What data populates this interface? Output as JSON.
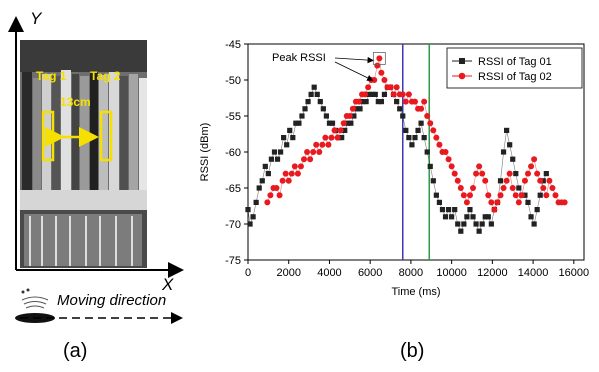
{
  "panel_a": {
    "y_axis_label": "Y",
    "x_axis_label": "X",
    "tag1_label": "Tag 1",
    "tag2_label": "Tag 2",
    "distance_label": "13cm",
    "moving_direction_label": "Moving direction",
    "caption": "(a)",
    "highlight_color": "#f5e000"
  },
  "panel_b": {
    "caption": "(b)",
    "annotation": "Peak RSSI",
    "vline1_x": 7600,
    "vline1_color": "#3b3bb3",
    "vline2_x": 8900,
    "vline2_color": "#2e9a4a"
  },
  "chart_data": {
    "type": "scatter",
    "title": "",
    "xlabel": "Time (ms)",
    "ylabel": "RSSI (dBm)",
    "xlim": [
      0,
      16500
    ],
    "ylim": [
      -75,
      -45
    ],
    "xticks": [
      0,
      2000,
      4000,
      6000,
      8000,
      10000,
      12000,
      14000,
      16000
    ],
    "yticks": [
      -75,
      -70,
      -65,
      -60,
      -55,
      -50,
      -45
    ],
    "legend_position": "top-right",
    "series": [
      {
        "name": "RSSI of Tag 01",
        "color": "#222222",
        "marker": "square",
        "points": [
          [
            0,
            -68
          ],
          [
            100,
            -70
          ],
          [
            250,
            -69
          ],
          [
            400,
            -67
          ],
          [
            550,
            -65
          ],
          [
            700,
            -64
          ],
          [
            850,
            -62
          ],
          [
            1000,
            -63
          ],
          [
            1150,
            -61
          ],
          [
            1300,
            -60
          ],
          [
            1450,
            -61
          ],
          [
            1600,
            -60
          ],
          [
            1750,
            -58
          ],
          [
            1900,
            -59
          ],
          [
            2050,
            -57
          ],
          [
            2200,
            -58
          ],
          [
            2350,
            -56
          ],
          [
            2500,
            -56
          ],
          [
            2650,
            -55
          ],
          [
            2800,
            -54
          ],
          [
            2950,
            -53
          ],
          [
            3100,
            -52
          ],
          [
            3250,
            -51
          ],
          [
            3400,
            -52
          ],
          [
            3550,
            -53
          ],
          [
            3700,
            -54
          ],
          [
            3850,
            -55
          ],
          [
            4000,
            -56
          ],
          [
            4150,
            -56
          ],
          [
            4300,
            -57
          ],
          [
            4450,
            -58
          ],
          [
            4600,
            -58
          ],
          [
            4750,
            -57
          ],
          [
            4900,
            -56
          ],
          [
            5050,
            -56
          ],
          [
            5200,
            -55
          ],
          [
            5350,
            -54
          ],
          [
            5500,
            -54
          ],
          [
            5650,
            -53
          ],
          [
            5800,
            -53
          ],
          [
            5950,
            -52
          ],
          [
            6100,
            -52
          ],
          [
            6250,
            -52
          ],
          [
            6400,
            -53
          ],
          [
            6550,
            -53
          ],
          [
            6700,
            -52
          ],
          [
            6850,
            -51
          ],
          [
            7000,
            -51
          ],
          [
            7150,
            -52
          ],
          [
            7300,
            -53
          ],
          [
            7450,
            -54
          ],
          [
            7600,
            -55
          ],
          [
            7750,
            -57
          ],
          [
            7900,
            -58
          ],
          [
            8050,
            -59
          ],
          [
            8200,
            -58
          ],
          [
            8350,
            -57
          ],
          [
            8500,
            -56
          ],
          [
            8650,
            -58
          ],
          [
            8800,
            -60
          ],
          [
            8950,
            -62
          ],
          [
            9100,
            -64
          ],
          [
            9250,
            -66
          ],
          [
            9400,
            -67
          ],
          [
            9550,
            -68
          ],
          [
            9700,
            -69
          ],
          [
            9850,
            -68
          ],
          [
            10000,
            -69
          ],
          [
            10150,
            -68
          ],
          [
            10300,
            -70
          ],
          [
            10450,
            -71
          ],
          [
            10600,
            -70
          ],
          [
            10750,
            -69
          ],
          [
            10900,
            -68
          ],
          [
            11050,
            -69
          ],
          [
            11200,
            -70
          ],
          [
            11350,
            -71
          ],
          [
            11500,
            -70
          ],
          [
            11650,
            -69
          ],
          [
            11800,
            -69
          ],
          [
            11950,
            -70
          ],
          [
            12100,
            -68
          ],
          [
            12250,
            -67
          ],
          [
            12400,
            -64
          ],
          [
            12550,
            -60
          ],
          [
            12700,
            -57
          ],
          [
            12850,
            -59
          ],
          [
            13000,
            -61
          ],
          [
            13150,
            -63
          ],
          [
            13300,
            -65
          ],
          [
            13450,
            -66
          ],
          [
            13600,
            -66
          ],
          [
            13750,
            -67
          ],
          [
            13900,
            -69
          ],
          [
            14050,
            -70
          ],
          [
            14200,
            -68
          ],
          [
            14350,
            -66
          ],
          [
            14500,
            -64
          ],
          [
            14650,
            -63
          ]
        ]
      },
      {
        "name": "RSSI of Tag 02",
        "color": "#e8191f",
        "marker": "circle",
        "points": [
          [
            950,
            -67
          ],
          [
            1100,
            -66
          ],
          [
            1250,
            -65
          ],
          [
            1400,
            -65
          ],
          [
            1550,
            -66
          ],
          [
            1700,
            -64
          ],
          [
            1850,
            -63
          ],
          [
            2000,
            -64
          ],
          [
            2150,
            -63
          ],
          [
            2300,
            -62
          ],
          [
            2450,
            -63
          ],
          [
            2600,
            -62
          ],
          [
            2750,
            -61
          ],
          [
            2900,
            -60
          ],
          [
            3050,
            -61
          ],
          [
            3200,
            -60
          ],
          [
            3350,
            -59
          ],
          [
            3500,
            -60
          ],
          [
            3650,
            -59
          ],
          [
            3800,
            -58
          ],
          [
            3950,
            -59
          ],
          [
            4100,
            -58
          ],
          [
            4250,
            -57
          ],
          [
            4400,
            -58
          ],
          [
            4550,
            -57
          ],
          [
            4700,
            -56
          ],
          [
            4850,
            -55
          ],
          [
            5000,
            -55
          ],
          [
            5150,
            -54
          ],
          [
            5300,
            -53
          ],
          [
            5450,
            -53
          ],
          [
            5600,
            -52
          ],
          [
            5750,
            -52
          ],
          [
            5900,
            -51
          ],
          [
            6050,
            -50
          ],
          [
            6200,
            -50
          ],
          [
            6350,
            -48
          ],
          [
            6450,
            -47
          ],
          [
            6550,
            -49
          ],
          [
            6700,
            -50
          ],
          [
            6850,
            -51
          ],
          [
            7000,
            -51
          ],
          [
            7150,
            -52
          ],
          [
            7300,
            -51
          ],
          [
            7450,
            -52
          ],
          [
            7600,
            -52
          ],
          [
            7750,
            -53
          ],
          [
            7900,
            -52
          ],
          [
            8050,
            -53
          ],
          [
            8200,
            -53
          ],
          [
            8350,
            -54
          ],
          [
            8500,
            -54
          ],
          [
            8650,
            -53
          ],
          [
            8800,
            -55
          ],
          [
            8950,
            -56
          ],
          [
            9100,
            -57
          ],
          [
            9250,
            -58
          ],
          [
            9400,
            -59
          ],
          [
            9550,
            -60
          ],
          [
            9700,
            -60
          ],
          [
            9850,
            -61
          ],
          [
            10000,
            -62
          ],
          [
            10150,
            -63
          ],
          [
            10300,
            -64
          ],
          [
            10450,
            -65
          ],
          [
            10600,
            -66
          ],
          [
            10750,
            -67
          ],
          [
            10900,
            -66
          ],
          [
            11050,
            -65
          ],
          [
            11200,
            -63
          ],
          [
            11350,
            -62
          ],
          [
            11500,
            -63
          ],
          [
            11650,
            -64
          ],
          [
            11800,
            -66
          ],
          [
            11950,
            -67
          ],
          [
            12100,
            -68
          ],
          [
            12250,
            -67
          ],
          [
            12400,
            -66
          ],
          [
            12550,
            -65
          ],
          [
            12700,
            -64
          ],
          [
            12850,
            -63
          ],
          [
            13000,
            -65
          ],
          [
            13150,
            -66
          ],
          [
            13300,
            -67
          ],
          [
            13450,
            -66
          ],
          [
            13600,
            -64
          ],
          [
            13750,
            -63
          ],
          [
            13900,
            -62
          ],
          [
            14050,
            -61
          ],
          [
            14200,
            -63
          ],
          [
            14350,
            -64
          ],
          [
            14500,
            -65
          ],
          [
            14650,
            -66
          ],
          [
            14800,
            -64
          ],
          [
            14950,
            -65
          ],
          [
            15100,
            -66
          ],
          [
            15250,
            -67
          ],
          [
            15400,
            -67
          ],
          [
            15550,
            -67
          ]
        ]
      }
    ]
  }
}
